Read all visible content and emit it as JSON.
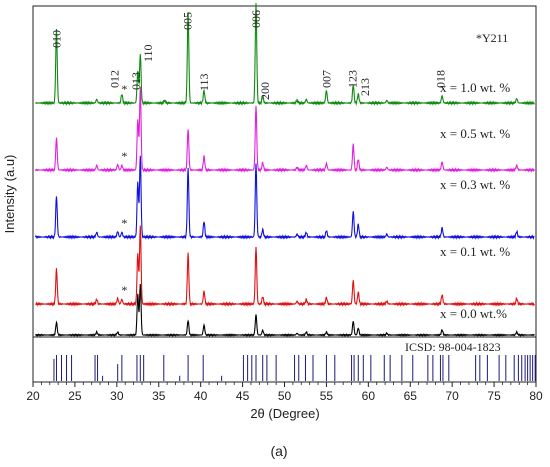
{
  "chart_data": {
    "type": "line",
    "xlabel": "2θ (Degree)",
    "ylabel": "Intensity (a.u)",
    "xlim": [
      20,
      80
    ],
    "x_ticks": [
      20,
      25,
      30,
      35,
      40,
      45,
      50,
      55,
      60,
      65,
      70,
      75,
      80
    ],
    "panel_label": "(a)",
    "impurity_note": "*Y211",
    "reference_label": "ICSD: 98-004-1823",
    "colors": {
      "x10": "#0f8a0f",
      "x05": "#e020e0",
      "x03": "#1010e0",
      "x01": "#e01010",
      "x00": "#000000",
      "reference": "#1a1a7a"
    },
    "series": [
      {
        "name": "x = 1.0 wt. %",
        "color_key": "x10",
        "peaks": [
          [
            22.8,
            0.82
          ],
          [
            27.6,
            0.04
          ],
          [
            30.6,
            0.1
          ],
          [
            32.5,
            0.35
          ],
          [
            32.8,
            0.55
          ],
          [
            35.7,
            0.03
          ],
          [
            38.5,
            1.0
          ],
          [
            40.4,
            0.14
          ],
          [
            46.6,
            1.1
          ],
          [
            47.4,
            0.08
          ],
          [
            51.5,
            0.03
          ],
          [
            52.6,
            0.04
          ],
          [
            55.0,
            0.14
          ],
          [
            58.2,
            0.2
          ],
          [
            58.8,
            0.1
          ],
          [
            62.2,
            0.03
          ],
          [
            68.8,
            0.08
          ],
          [
            77.7,
            0.05
          ]
        ]
      },
      {
        "name": "x = 0.5 wt. %",
        "color_key": "x05",
        "peaks": [
          [
            22.8,
            0.35
          ],
          [
            27.6,
            0.05
          ],
          [
            30.1,
            0.06
          ],
          [
            30.6,
            0.05
          ],
          [
            32.5,
            0.55
          ],
          [
            32.8,
            0.9
          ],
          [
            38.5,
            0.45
          ],
          [
            40.4,
            0.15
          ],
          [
            46.6,
            0.7
          ],
          [
            47.4,
            0.08
          ],
          [
            51.5,
            0.03
          ],
          [
            52.6,
            0.05
          ],
          [
            55.0,
            0.07
          ],
          [
            58.2,
            0.28
          ],
          [
            58.8,
            0.12
          ],
          [
            62.2,
            0.03
          ],
          [
            68.8,
            0.09
          ],
          [
            77.7,
            0.05
          ]
        ]
      },
      {
        "name": "x = 0.3 wt. %",
        "color_key": "x03",
        "peaks": [
          [
            22.8,
            0.45
          ],
          [
            27.6,
            0.05
          ],
          [
            30.1,
            0.06
          ],
          [
            30.6,
            0.05
          ],
          [
            32.5,
            0.6
          ],
          [
            32.8,
            0.88
          ],
          [
            38.5,
            0.75
          ],
          [
            40.4,
            0.17
          ],
          [
            46.6,
            0.8
          ],
          [
            47.4,
            0.08
          ],
          [
            51.5,
            0.03
          ],
          [
            52.6,
            0.05
          ],
          [
            55.0,
            0.07
          ],
          [
            58.2,
            0.28
          ],
          [
            58.8,
            0.14
          ],
          [
            62.2,
            0.03
          ],
          [
            68.8,
            0.1
          ],
          [
            77.7,
            0.06
          ]
        ]
      },
      {
        "name": "x = 0.1 wt. %",
        "color_key": "x01",
        "peaks": [
          [
            22.8,
            0.38
          ],
          [
            27.6,
            0.05
          ],
          [
            30.1,
            0.06
          ],
          [
            30.6,
            0.05
          ],
          [
            32.5,
            0.55
          ],
          [
            32.8,
            0.85
          ],
          [
            38.5,
            0.55
          ],
          [
            40.4,
            0.14
          ],
          [
            46.6,
            0.62
          ],
          [
            47.4,
            0.08
          ],
          [
            51.5,
            0.03
          ],
          [
            52.6,
            0.05
          ],
          [
            55.0,
            0.07
          ],
          [
            58.2,
            0.26
          ],
          [
            58.8,
            0.13
          ],
          [
            62.2,
            0.03
          ],
          [
            68.8,
            0.1
          ],
          [
            77.7,
            0.06
          ]
        ]
      },
      {
        "name": "x = 0.0 wt.%",
        "color_key": "x00",
        "peaks": [
          [
            22.8,
            0.22
          ],
          [
            27.6,
            0.05
          ],
          [
            30.1,
            0.05
          ],
          [
            32.5,
            0.7
          ],
          [
            32.8,
            0.88
          ],
          [
            38.5,
            0.25
          ],
          [
            40.4,
            0.17
          ],
          [
            46.6,
            0.35
          ],
          [
            47.4,
            0.08
          ],
          [
            51.5,
            0.03
          ],
          [
            52.6,
            0.05
          ],
          [
            55.0,
            0.05
          ],
          [
            58.2,
            0.24
          ],
          [
            58.8,
            0.12
          ],
          [
            62.2,
            0.03
          ],
          [
            68.8,
            0.09
          ],
          [
            77.7,
            0.05
          ]
        ]
      }
    ],
    "peak_labels": [
      {
        "text": "010",
        "x": 22.8
      },
      {
        "text": "012",
        "x": 29.7
      },
      {
        "text": "013",
        "x": 32.3
      },
      {
        "text": "110",
        "x": 33.7
      },
      {
        "text": "005",
        "x": 38.4
      },
      {
        "text": "113",
        "x": 40.4
      },
      {
        "text": "006",
        "x": 46.6
      },
      {
        "text": "200",
        "x": 47.7
      },
      {
        "text": "007",
        "x": 55.0
      },
      {
        "text": "123",
        "x": 58.1
      },
      {
        "text": "213",
        "x": 59.6
      },
      {
        "text": "018",
        "x": 68.6
      }
    ],
    "impurity_markers": [
      {
        "text": "*",
        "x": 30.9,
        "series": 0
      },
      {
        "text": "*",
        "x": 30.9,
        "series": 1
      },
      {
        "text": "*",
        "x": 30.9,
        "series": 2
      },
      {
        "text": "*",
        "x": 30.9,
        "series": 3
      }
    ],
    "reference_lines": [
      {
        "x": 22.5,
        "h": 0.85
      },
      {
        "x": 22.8,
        "h": 1.0
      },
      {
        "x": 23.4,
        "h": 1.0
      },
      {
        "x": 24.0,
        "h": 1.0
      },
      {
        "x": 24.6,
        "h": 1.0
      },
      {
        "x": 27.4,
        "h": 1.0
      },
      {
        "x": 27.7,
        "h": 1.0
      },
      {
        "x": 28.3,
        "h": 0.2
      },
      {
        "x": 30.1,
        "h": 0.65
      },
      {
        "x": 30.6,
        "h": 1.0
      },
      {
        "x": 32.4,
        "h": 1.0
      },
      {
        "x": 32.8,
        "h": 1.0
      },
      {
        "x": 33.2,
        "h": 1.0
      },
      {
        "x": 35.6,
        "h": 1.0
      },
      {
        "x": 37.5,
        "h": 0.2
      },
      {
        "x": 38.5,
        "h": 1.0
      },
      {
        "x": 40.3,
        "h": 1.0
      },
      {
        "x": 42.5,
        "h": 0.2
      },
      {
        "x": 45.1,
        "h": 1.0
      },
      {
        "x": 45.6,
        "h": 1.0
      },
      {
        "x": 46.1,
        "h": 1.0
      },
      {
        "x": 46.6,
        "h": 1.0
      },
      {
        "x": 47.4,
        "h": 1.0
      },
      {
        "x": 47.9,
        "h": 1.0
      },
      {
        "x": 49.0,
        "h": 1.0
      },
      {
        "x": 51.2,
        "h": 1.0
      },
      {
        "x": 51.7,
        "h": 1.0
      },
      {
        "x": 52.5,
        "h": 1.0
      },
      {
        "x": 53.4,
        "h": 1.0
      },
      {
        "x": 55.0,
        "h": 1.0
      },
      {
        "x": 56.0,
        "h": 1.0
      },
      {
        "x": 58.0,
        "h": 1.0
      },
      {
        "x": 58.3,
        "h": 1.0
      },
      {
        "x": 58.8,
        "h": 1.0
      },
      {
        "x": 59.4,
        "h": 1.0
      },
      {
        "x": 60.3,
        "h": 1.0
      },
      {
        "x": 61.9,
        "h": 1.0
      },
      {
        "x": 62.6,
        "h": 1.0
      },
      {
        "x": 64.0,
        "h": 1.0
      },
      {
        "x": 65.3,
        "h": 1.0
      },
      {
        "x": 67.1,
        "h": 1.0
      },
      {
        "x": 67.7,
        "h": 1.0
      },
      {
        "x": 68.6,
        "h": 1.0
      },
      {
        "x": 68.9,
        "h": 1.0
      },
      {
        "x": 69.6,
        "h": 1.0
      },
      {
        "x": 72.8,
        "h": 1.0
      },
      {
        "x": 73.3,
        "h": 1.0
      },
      {
        "x": 74.2,
        "h": 1.0
      },
      {
        "x": 75.6,
        "h": 1.0
      },
      {
        "x": 76.4,
        "h": 1.0
      },
      {
        "x": 77.4,
        "h": 1.0
      },
      {
        "x": 77.9,
        "h": 1.0
      },
      {
        "x": 78.3,
        "h": 1.0
      },
      {
        "x": 78.7,
        "h": 1.0
      },
      {
        "x": 79.0,
        "h": 1.0
      },
      {
        "x": 79.3,
        "h": 1.0
      },
      {
        "x": 79.6,
        "h": 1.0
      },
      {
        "x": 79.9,
        "h": 1.0
      }
    ]
  }
}
